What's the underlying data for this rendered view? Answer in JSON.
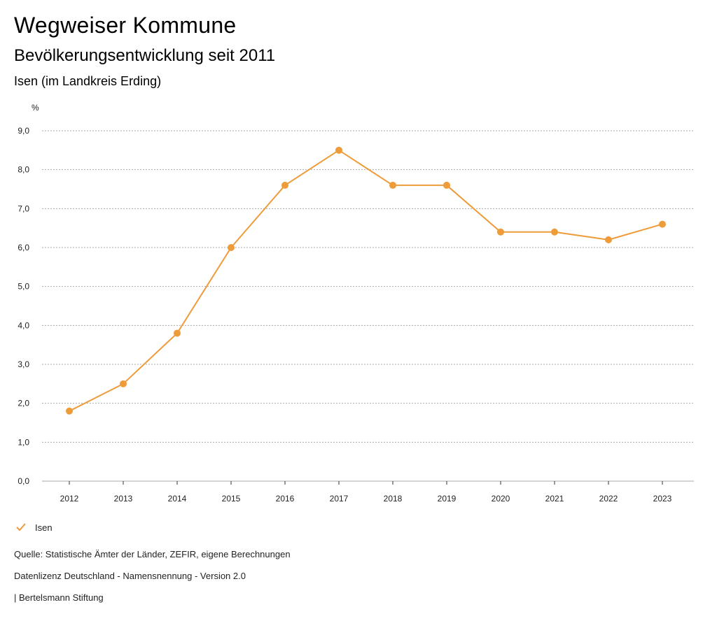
{
  "header": {
    "title": "Wegweiser Kommune",
    "subtitle": "Bevölkerungsentwicklung seit 2011",
    "region": "Isen (im Landkreis Erding)"
  },
  "colors": {
    "series": "#ee9b3a",
    "grid": "#aaaaaa",
    "axis": "#333333"
  },
  "chart_data": {
    "type": "line",
    "title": "Bevölkerungsentwicklung seit 2011",
    "ylabel": "%",
    "xlabel": "",
    "ylim": [
      0,
      9
    ],
    "yticks": [
      "0,0",
      "1,0",
      "2,0",
      "3,0",
      "4,0",
      "5,0",
      "6,0",
      "7,0",
      "8,0",
      "9,0"
    ],
    "categories": [
      "2012",
      "2013",
      "2014",
      "2015",
      "2016",
      "2017",
      "2018",
      "2019",
      "2020",
      "2021",
      "2022",
      "2023"
    ],
    "series": [
      {
        "name": "Isen",
        "values": [
          1.8,
          2.5,
          3.8,
          6.0,
          7.6,
          8.5,
          7.6,
          7.6,
          6.4,
          6.4,
          6.2,
          6.6
        ]
      }
    ],
    "grid": true,
    "legend": "bottom-left"
  },
  "legend": {
    "label": "Isen",
    "icon": "check-icon"
  },
  "footer": {
    "source": "Quelle: Statistische Ämter der Länder, ZEFIR, eigene Berechnungen",
    "license": "Datenlizenz Deutschland - Namensnennung - Version 2.0",
    "publisher": "| Bertelsmann Stiftung"
  }
}
